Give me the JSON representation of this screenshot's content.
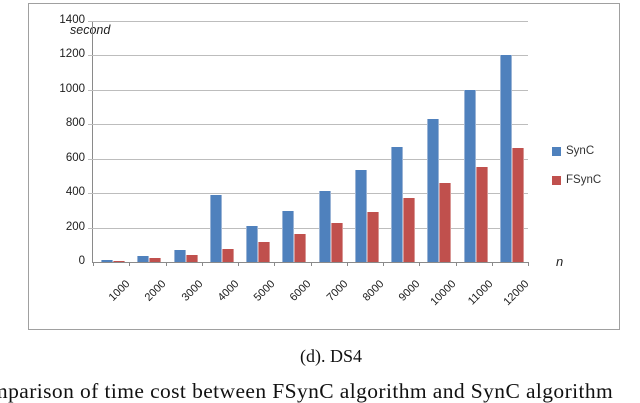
{
  "chart_data": {
    "type": "bar",
    "title": "",
    "ylabel": "second",
    "xlabel": "n",
    "ylim": [
      0,
      1400
    ],
    "ytick_interval": 200,
    "yticks": [
      "1400",
      "1200",
      "1000",
      "800",
      "600",
      "400",
      "200",
      "0"
    ],
    "grid": true,
    "legend_position": "right",
    "categories": [
      "1000",
      "2000",
      "3000",
      "4000",
      "5000",
      "6000",
      "7000",
      "8000",
      "9000",
      "10000",
      "11000",
      "12000"
    ],
    "series": [
      {
        "name": "SynC",
        "color": "#4F81BD",
        "values": [
          10,
          35,
          68,
          390,
          210,
          295,
          410,
          535,
          670,
          830,
          1000,
          1200
        ]
      },
      {
        "name": "FSynC",
        "color": "#C0504D",
        "values": [
          5,
          22,
          40,
          76,
          118,
          165,
          225,
          290,
          370,
          460,
          550,
          665
        ]
      }
    ],
    "colors": {
      "gridline": "#BDBDBD",
      "axis": "#8A8A8A",
      "frame_border": "#A0A0A0"
    }
  },
  "captions": {
    "subcaption": "(d). DS4",
    "bottom_text_partial": "mparison of time cost between FSynC algorithm and SynC algorithm"
  }
}
